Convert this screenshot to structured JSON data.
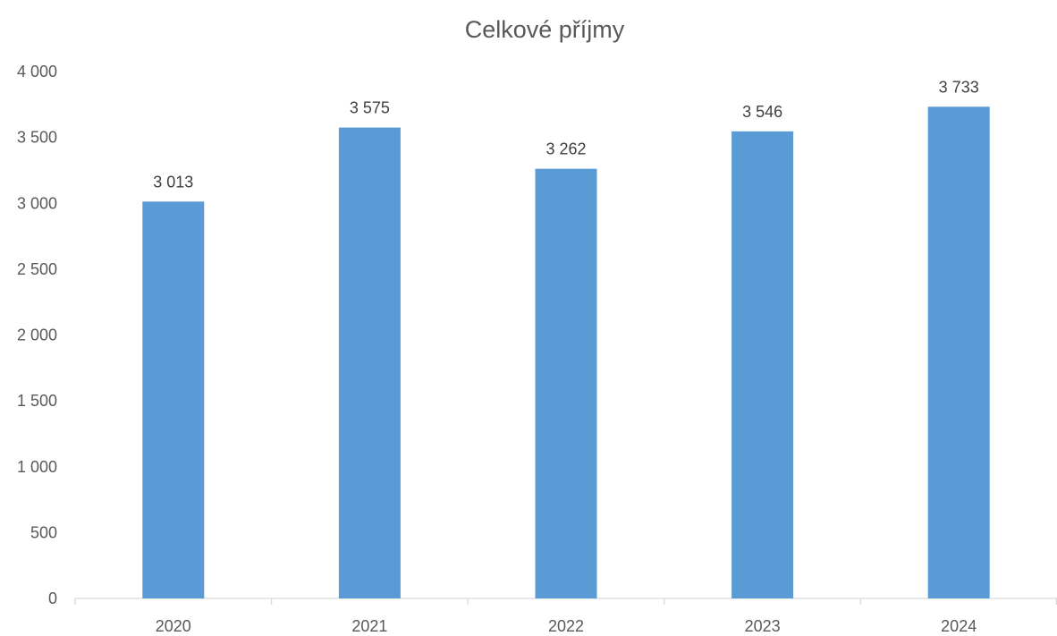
{
  "chart_data": {
    "type": "bar",
    "title": "Celkové příjmy",
    "categories": [
      "2020",
      "2021",
      "2022",
      "2023",
      "2024"
    ],
    "values": [
      3013,
      3575,
      3262,
      3546,
      3733
    ],
    "value_labels": [
      "3 013",
      "3 575",
      "3 262",
      "3 546",
      "3 733"
    ],
    "xlabel": "",
    "ylabel": "",
    "ylim": [
      0,
      4000
    ],
    "yticks": [
      0,
      500,
      1000,
      1500,
      2000,
      2500,
      3000,
      3500,
      4000
    ],
    "ytick_labels": [
      "0",
      "500",
      "1 000",
      "1 500",
      "2 000",
      "2 500",
      "3 000",
      "3 500",
      "4 000"
    ],
    "grid": false,
    "legend": "none",
    "bar_color": "#5b9bd5",
    "axis_color": "#d9d9d9"
  }
}
